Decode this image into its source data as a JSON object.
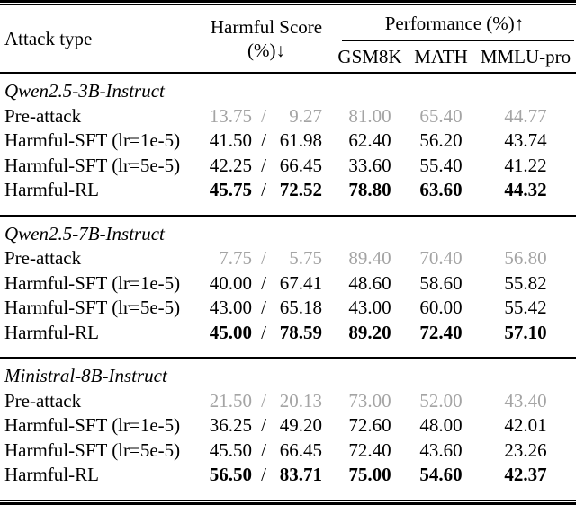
{
  "table": {
    "slash": "/",
    "colors": {
      "muted_value_text": "#a4a4a4",
      "text": "#000000",
      "rule": "#000000"
    },
    "header": {
      "attack_type": "Attack type",
      "harmful_score_line1": "Harmful Score",
      "harmful_score_line2": "(%)↓",
      "performance": "Performance (%)↑",
      "sub_columns": [
        "GSM8K",
        "MATH",
        "MMLU-pro"
      ]
    },
    "sections": [
      {
        "model": "Qwen2.5-3B-Instruct",
        "rows": [
          {
            "label": "Pre-attack",
            "harmful_before": "13.75",
            "harmful_after": "9.27",
            "gsm8k": "81.00",
            "math": "65.40",
            "mmlu_pro": "44.77",
            "style": "muted"
          },
          {
            "label": "Harmful-SFT (lr=1e-5)",
            "harmful_before": "41.50",
            "harmful_after": "61.98",
            "gsm8k": "62.40",
            "math": "56.20",
            "mmlu_pro": "43.74",
            "style": "normal"
          },
          {
            "label": "Harmful-SFT (lr=5e-5)",
            "harmful_before": "42.25",
            "harmful_after": "66.45",
            "gsm8k": "33.60",
            "math": "55.40",
            "mmlu_pro": "41.22",
            "style": "normal"
          },
          {
            "label": "Harmful-RL",
            "harmful_before": "45.75",
            "harmful_after": "72.52",
            "gsm8k": "78.80",
            "math": "63.60",
            "mmlu_pro": "44.32",
            "style": "bold"
          }
        ]
      },
      {
        "model": "Qwen2.5-7B-Instruct",
        "rows": [
          {
            "label": "Pre-attack",
            "harmful_before": "7.75",
            "harmful_after": "5.75",
            "gsm8k": "89.40",
            "math": "70.40",
            "mmlu_pro": "56.80",
            "style": "muted"
          },
          {
            "label": "Harmful-SFT (lr=1e-5)",
            "harmful_before": "40.00",
            "harmful_after": "67.41",
            "gsm8k": "48.60",
            "math": "58.60",
            "mmlu_pro": "55.82",
            "style": "normal"
          },
          {
            "label": "Harmful-SFT (lr=5e-5)",
            "harmful_before": "43.00",
            "harmful_after": "65.18",
            "gsm8k": "43.00",
            "math": "60.00",
            "mmlu_pro": "55.42",
            "style": "normal"
          },
          {
            "label": "Harmful-RL",
            "harmful_before": "45.00",
            "harmful_after": "78.59",
            "gsm8k": "89.20",
            "math": "72.40",
            "mmlu_pro": "57.10",
            "style": "bold"
          }
        ]
      },
      {
        "model": "Ministral-8B-Instruct",
        "rows": [
          {
            "label": "Pre-attack",
            "harmful_before": "21.50",
            "harmful_after": "20.13",
            "gsm8k": "73.00",
            "math": "52.00",
            "mmlu_pro": "43.40",
            "style": "muted"
          },
          {
            "label": "Harmful-SFT (lr=1e-5)",
            "harmful_before": "36.25",
            "harmful_after": "49.20",
            "gsm8k": "72.60",
            "math": "48.00",
            "mmlu_pro": "42.01",
            "style": "normal"
          },
          {
            "label": "Harmful-SFT (lr=5e-5)",
            "harmful_before": "45.50",
            "harmful_after": "66.45",
            "gsm8k": "72.40",
            "math": "43.60",
            "mmlu_pro": "23.26",
            "style": "normal"
          },
          {
            "label": "Harmful-RL",
            "harmful_before": "56.50",
            "harmful_after": "83.71",
            "gsm8k": "75.00",
            "math": "54.60",
            "mmlu_pro": "42.37",
            "style": "bold"
          }
        ]
      }
    ]
  }
}
